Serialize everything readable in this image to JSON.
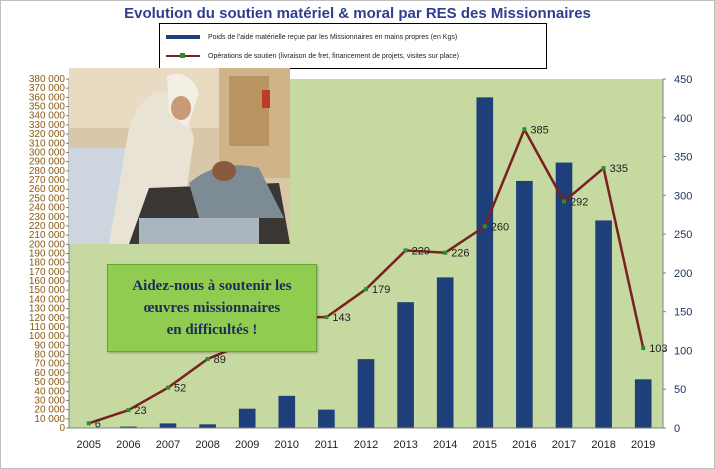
{
  "chart_data": {
    "type": "bar",
    "title": "Evolution du soutien matériel  & moral par RES des Missionnaires",
    "categories": [
      "2005",
      "2006",
      "2007",
      "2008",
      "2009",
      "2010",
      "2011",
      "2012",
      "2013",
      "2014",
      "2015",
      "2016",
      "2017",
      "2018",
      "2019"
    ],
    "series": [
      {
        "name": "Poids de l'aide matérielle reçue par les Missionnaires en mains propres (en Kgs)",
        "type": "bar",
        "axis": "left",
        "color": "#1f3f7a",
        "values": [
          500,
          1500,
          5000,
          4000,
          21000,
          35000,
          20000,
          75000,
          137000,
          164000,
          360000,
          269000,
          289000,
          226000,
          53000
        ]
      },
      {
        "name": "Opérations de soutien (livraison de fret, financement de projets, visites sur place)",
        "type": "line",
        "axis": "right",
        "color": "#7a2020",
        "marker_color": "#2e8b2e",
        "values": [
          6,
          23,
          52,
          89,
          110,
          143,
          143,
          179,
          229,
          226,
          260,
          385,
          292,
          335,
          103
        ],
        "labels": [
          "6",
          "23",
          "52",
          "89",
          "",
          "",
          "143",
          "179",
          "229",
          "226",
          "260",
          "385",
          "292",
          "335",
          "103"
        ]
      }
    ],
    "y_left": {
      "min": 0,
      "max": 380000,
      "step": 10000,
      "tick_labels": [
        "0",
        "10 000",
        "20 000",
        "30 000",
        "40 000",
        "50 000",
        "60 000",
        "70 000",
        "80 000",
        "90 000",
        "100 000",
        "110 000",
        "120 000",
        "130 000",
        "140 000",
        "150 000",
        "160 000",
        "170 000",
        "180 000",
        "190 000",
        "200 000",
        "210 000",
        "220 000",
        "230 000",
        "240 000",
        "250 000",
        "260 000",
        "270 000",
        "280 000",
        "290 000",
        "300 000",
        "310 000",
        "320 000",
        "330 000",
        "340 000",
        "350 000",
        "360 000",
        "370 000",
        "380 000"
      ]
    },
    "y_right": {
      "min": 0,
      "max": 450,
      "step": 50,
      "tick_labels": [
        "0",
        "50",
        "100",
        "150",
        "200",
        "250",
        "300",
        "350",
        "400",
        "450"
      ]
    },
    "plot_background": "#c5d9a0",
    "grid": false,
    "legend": "top"
  },
  "callout": {
    "text": "Aidez-nous à soutenir les\nœuvres missionnaires\nen difficultés !",
    "background": "#90cc50"
  },
  "photo": {
    "subject": "nun-caring-for-patient-photo"
  }
}
